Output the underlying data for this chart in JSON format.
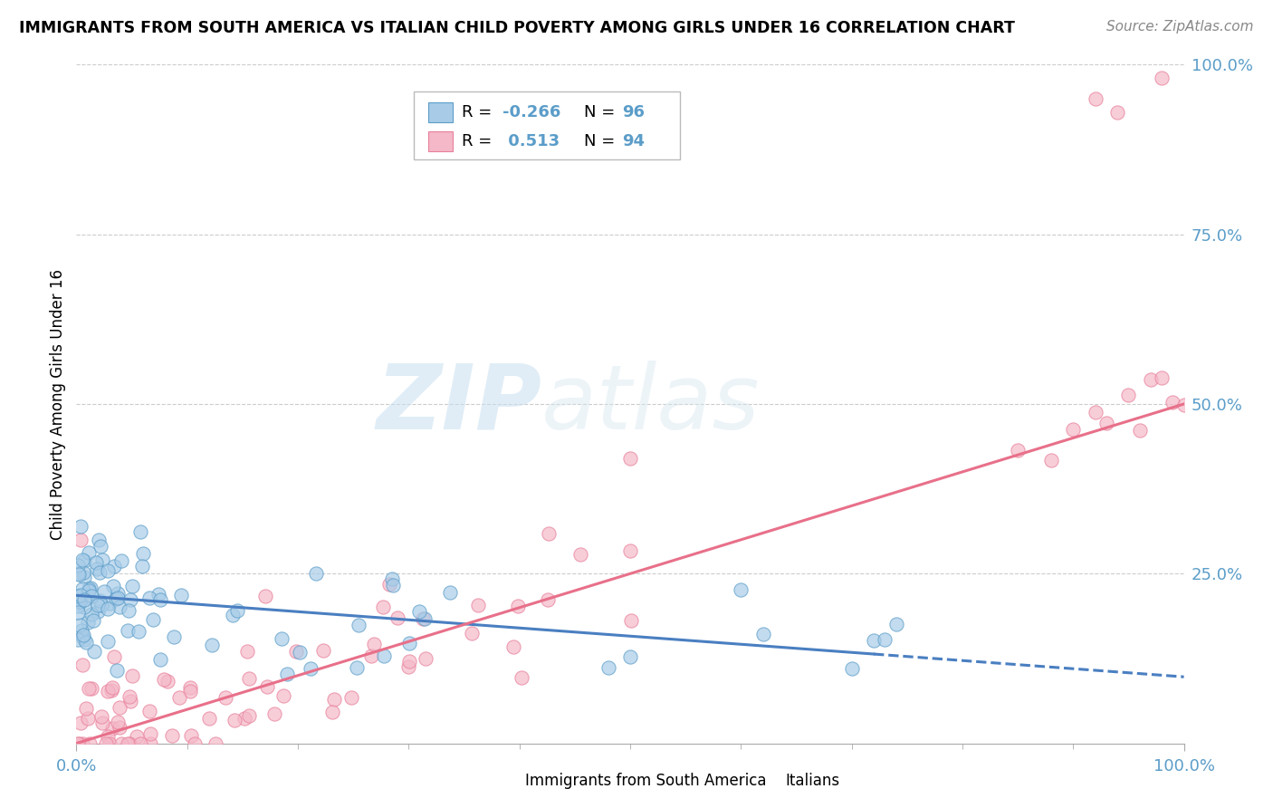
{
  "title": "IMMIGRANTS FROM SOUTH AMERICA VS ITALIAN CHILD POVERTY AMONG GIRLS UNDER 16 CORRELATION CHART",
  "source": "Source: ZipAtlas.com",
  "ylabel": "Child Poverty Among Girls Under 16",
  "color_blue": "#a8cce8",
  "color_blue_edge": "#5b9dc9",
  "color_blue_line": "#4a7fc1",
  "color_pink": "#f4b8c8",
  "color_pink_edge": "#e8809a",
  "color_pink_line": "#e8708a",
  "color_tick": "#5b9dc9",
  "watermark_color": "#d8eaf5",
  "blue_line_solid_end": 0.72,
  "blue_line_intercept": 0.218,
  "blue_line_slope": -0.12,
  "pink_line_intercept": 0.0,
  "pink_line_slope": 0.5,
  "xmin": 0.0,
  "xmax": 1.0,
  "ymin": 0.0,
  "ymax": 1.0,
  "yticks": [
    0.25,
    0.5,
    0.75,
    1.0
  ],
  "ytick_labels": [
    "25.0%",
    "50.0%",
    "75.0%",
    "100.0%"
  ]
}
